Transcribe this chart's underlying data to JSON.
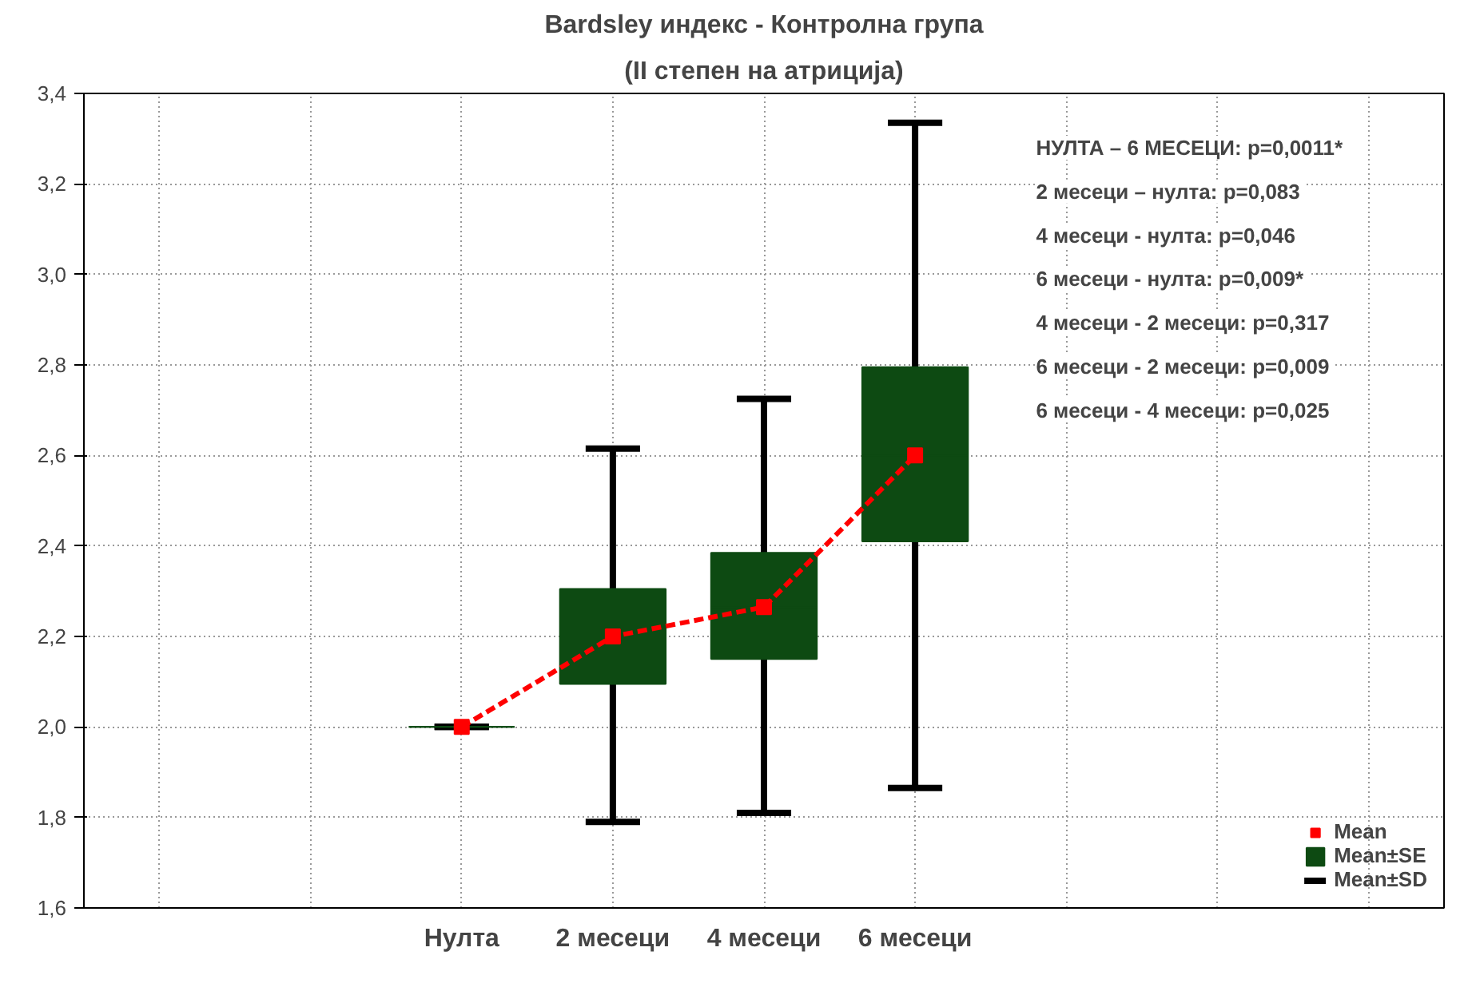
{
  "chart_data": {
    "type": "box",
    "title": "Bardsley индекс - Контролна група",
    "subtitle": "(II степен на атриција)",
    "categories": [
      null,
      null,
      "Нулта",
      "2 месеци",
      "4 месеци",
      "6 месеци",
      null,
      null,
      null
    ],
    "ylim": [
      1.6,
      3.4
    ],
    "yticks": [
      {
        "value": 1.6,
        "label": "1,6"
      },
      {
        "value": 1.8,
        "label": "1,8"
      },
      {
        "value": 2.0,
        "label": "2,0"
      },
      {
        "value": 2.2,
        "label": "2,2"
      },
      {
        "value": 2.4,
        "label": "2,4"
      },
      {
        "value": 2.6,
        "label": "2,6"
      },
      {
        "value": 2.8,
        "label": "2,8"
      },
      {
        "value": 3.0,
        "label": "3,0"
      },
      {
        "value": 3.2,
        "label": "3,2"
      },
      {
        "value": 3.4,
        "label": "3,4"
      }
    ],
    "grid": true,
    "legend": "bottom right",
    "series": [
      {
        "type": "box",
        "name": "Mean±SE",
        "color": "#0d4a12",
        "boxes": [
          null,
          null,
          {
            "low": 2.0,
            "q1": 2.0,
            "median": 2.0,
            "q3": 2.0,
            "high": 2.0
          },
          {
            "low": 1.79,
            "q1": 2.095,
            "median": 2.2,
            "q3": 2.305,
            "high": 2.615
          },
          {
            "low": 1.81,
            "q1": 2.15,
            "median": 2.265,
            "q3": 2.385,
            "high": 2.725
          },
          {
            "low": 1.865,
            "q1": 2.41,
            "median": 2.6,
            "q3": 2.795,
            "high": 3.335
          },
          null,
          null,
          null
        ]
      },
      {
        "type": "line",
        "name": "Mean",
        "color": "#ff0000",
        "marker": "square",
        "line_style": "dashed",
        "values": [
          null,
          null,
          2.0,
          2.2,
          2.265,
          2.6,
          null,
          null,
          null
        ]
      }
    ],
    "annotations": [
      "Mean±SD",
      "НУЛТА – 6 МЕСЕЦИ: p=0,0011*",
      "2 месеци – нулта:  p=0,083",
      "4 месеци  - нулта:  p=0,046",
      "6 месеци  - нулта: p=0,009*",
      "4 месеци - 2 месеци:  p=0,317",
      "6 месеци - 2 месеци:  p=0,009",
      "6 месеци - 4 месеци:  p=0,025"
    ]
  }
}
